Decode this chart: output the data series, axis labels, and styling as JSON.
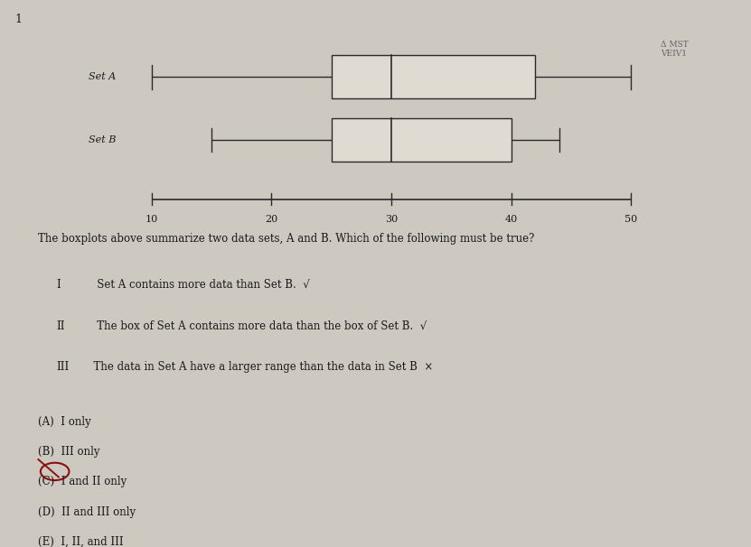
{
  "background_color": "#cdc9c1",
  "question_number": "1",
  "axis_xticks": [
    10,
    20,
    30,
    40,
    50
  ],
  "setA": {
    "label": "Set A",
    "whisker_low": 10,
    "q1": 25,
    "median": 30,
    "q3": 42,
    "whisker_high": 50
  },
  "setB": {
    "label": "Set B",
    "whisker_low": 15,
    "q1": 25,
    "median": 30,
    "q3": 40,
    "whisker_high": 44
  },
  "annotation_text": "Δ MST\nVEIV1",
  "question_text": "The boxplots above summarize two data sets, A and B. Which of the following must be true?",
  "item1_roman": "I",
  "item1_text": "   Set A contains more data than Set B.  √",
  "item2_roman": "II",
  "item2_text": "   The box of Set A contains more data than the box of Set B.  √",
  "item3_roman": "III",
  "item3_text": "  The data in Set A have a larger range than the data in Set B  ×",
  "choices": [
    "(A)  I only",
    "(B)  III only",
    "(C)  I and II only",
    "(D)  II and III only",
    "(E)  I, II, and III"
  ],
  "box_facecolor": "#e0dbd2",
  "line_color": "#2a2a2a",
  "text_color": "#1a1a1a",
  "annot_color": "#666666",
  "circle_color": "#8B1010"
}
